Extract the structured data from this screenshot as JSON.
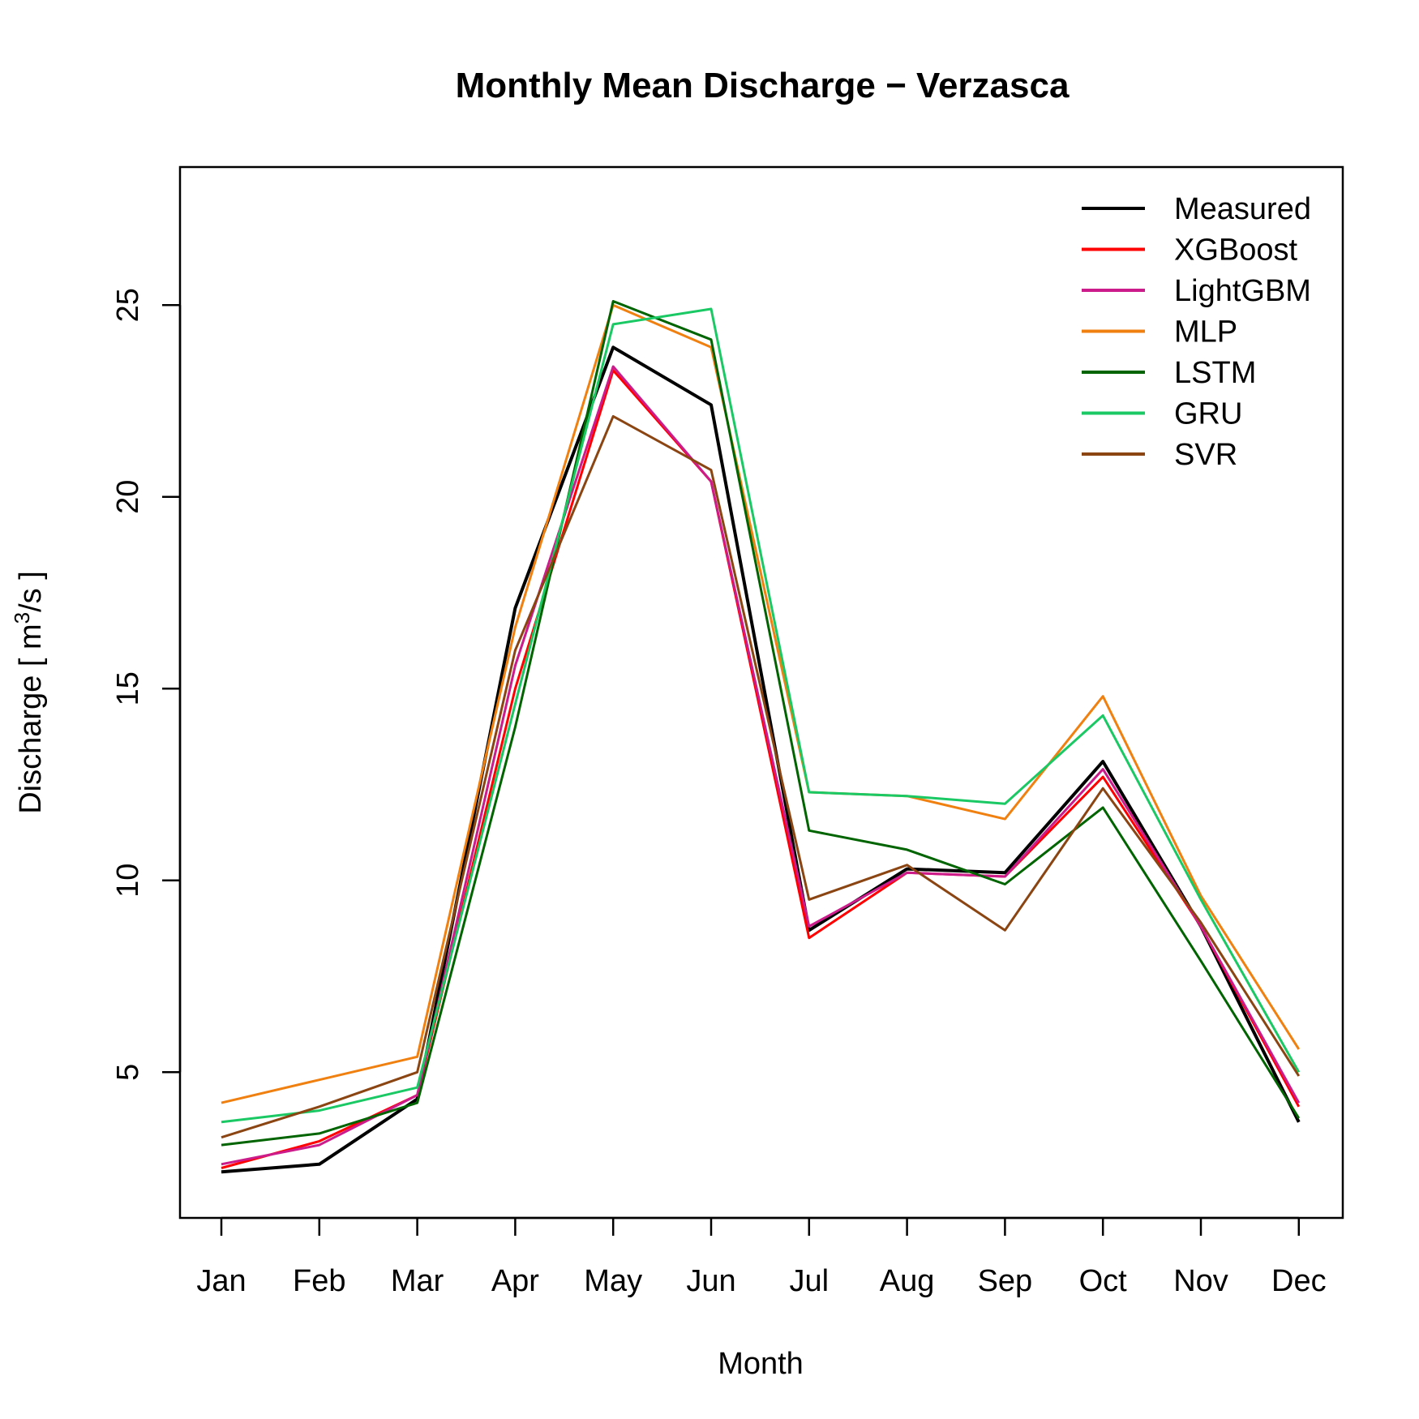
{
  "chart_data": {
    "type": "line",
    "title": "Monthly Mean Discharge − Verzasca",
    "xlabel": "Month",
    "ylabel_prefix": "Discharge [ m",
    "ylabel_sup": "3",
    "ylabel_suffix": "/s ]",
    "categories": [
      "Jan",
      "Feb",
      "Mar",
      "Apr",
      "May",
      "Jun",
      "Jul",
      "Aug",
      "Sep",
      "Oct",
      "Nov",
      "Dec"
    ],
    "ylim": [
      1.2,
      28.6
    ],
    "yticks": [
      5,
      10,
      15,
      20,
      25
    ],
    "grid": false,
    "legend_position": "top-right",
    "series": [
      {
        "name": "Measured",
        "color": "#000000",
        "width": 4,
        "values": [
          2.4,
          2.6,
          4.3,
          17.1,
          23.9,
          22.4,
          8.7,
          10.3,
          10.2,
          13.1,
          8.8,
          3.7
        ]
      },
      {
        "name": "XGBoost",
        "color": "#ff0000",
        "width": 3,
        "values": [
          2.5,
          3.2,
          4.4,
          15.0,
          23.3,
          20.4,
          8.5,
          10.2,
          10.1,
          12.7,
          8.8,
          4.1
        ]
      },
      {
        "name": "LightGBM",
        "color": "#cc1b8b",
        "width": 3,
        "values": [
          2.6,
          3.1,
          4.4,
          15.6,
          23.4,
          20.4,
          8.8,
          10.2,
          10.1,
          12.9,
          8.8,
          4.2
        ]
      },
      {
        "name": "MLP",
        "color": "#f08010",
        "width": 3,
        "values": [
          4.2,
          4.8,
          5.4,
          16.6,
          25.0,
          23.9,
          12.3,
          12.2,
          11.6,
          14.8,
          9.6,
          5.6
        ]
      },
      {
        "name": "LSTM",
        "color": "#006400",
        "width": 3,
        "values": [
          3.1,
          3.4,
          4.2,
          14.0,
          25.1,
          24.1,
          11.3,
          10.8,
          9.9,
          11.9,
          7.9,
          3.8
        ]
      },
      {
        "name": "GRU",
        "color": "#1ac864",
        "width": 3,
        "values": [
          3.7,
          4.0,
          4.6,
          14.6,
          24.5,
          24.9,
          12.3,
          12.2,
          12.0,
          14.3,
          9.5,
          5.0
        ]
      },
      {
        "name": "SVR",
        "color": "#8b4513",
        "width": 3,
        "values": [
          3.3,
          4.1,
          5.0,
          16.0,
          22.1,
          20.7,
          9.5,
          10.4,
          8.7,
          12.4,
          8.9,
          4.9
        ]
      }
    ]
  }
}
